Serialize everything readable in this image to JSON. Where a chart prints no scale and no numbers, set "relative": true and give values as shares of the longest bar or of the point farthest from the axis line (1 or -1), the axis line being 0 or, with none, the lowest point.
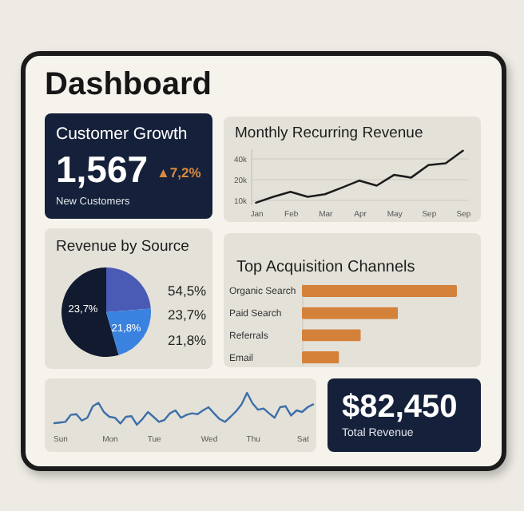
{
  "chart_data": [
    {
      "type": "other",
      "title": "Dashboard"
    },
    {
      "type": "other",
      "title": "Customer Growth",
      "annotations": [
        "1,567",
        "▲7,2%",
        "New Customers"
      ]
    },
    {
      "type": "line",
      "title": "Monthly Recurring Revenue",
      "categories": [
        "Jan",
        null,
        "Feb",
        null,
        "Mar",
        null,
        "Apr",
        null,
        "May",
        null,
        "Sep",
        null,
        "Sep"
      ],
      "values": [
        9000,
        11000,
        13000,
        11000,
        12000,
        15000,
        19000,
        16000,
        23000,
        21000,
        32000,
        34000,
        52000
      ],
      "color": "#1c1c1c",
      "log": "y",
      "ylim": [
        8500,
        56000
      ],
      "yticks": [
        {
          "value": 10000,
          "label": "10k"
        },
        {
          "value": 20000,
          "label": "20k"
        },
        {
          "value": 40000,
          "label": "40k"
        }
      ],
      "grid": "y"
    },
    {
      "type": "pie",
      "title": "Revenue by Source",
      "categories": [
        null,
        null,
        null
      ],
      "values": [
        54.5,
        23.7,
        21.8
      ],
      "colors": [
        "#111a2e",
        "#4a5bb5",
        "#3a82e0"
      ],
      "annotations": [
        "54,5%",
        "23,7%",
        "21,8%",
        "23,7%",
        "21,8%"
      ]
    },
    {
      "type": "bar",
      "orientation": "horizontal",
      "relative": true,
      "title": "Top Acquisition Channels",
      "categories": [
        "Organic Search",
        "Paid Search",
        "Referrals",
        "Email"
      ],
      "values": [
        1,
        0.62,
        0.38,
        0.24
      ],
      "color": "#d4813a"
    },
    {
      "type": "line",
      "relative": true,
      "categories": [
        null,
        "Sun",
        null,
        null,
        null,
        null,
        null,
        null,
        null,
        null,
        "Mon",
        null,
        null,
        null,
        null,
        null,
        null,
        null,
        "Tue",
        null,
        null,
        null,
        null,
        null,
        null,
        null,
        null,
        null,
        "Wed",
        null,
        null,
        null,
        null,
        null,
        null,
        null,
        "Thu",
        null,
        null,
        null,
        null,
        null,
        null,
        null,
        null,
        "Sat",
        null,
        null
      ],
      "values": [
        0.05,
        0.07,
        0.09,
        0.31,
        0.33,
        0.13,
        0.22,
        0.58,
        0.69,
        0.4,
        0.25,
        0.22,
        0.04,
        0.25,
        0.27,
        0,
        0.18,
        0.4,
        0.25,
        0.09,
        0.15,
        0.36,
        0.45,
        0.22,
        0.31,
        0.36,
        0.33,
        0.45,
        0.55,
        0.36,
        0.18,
        0.09,
        0.25,
        0.42,
        0.64,
        1,
        0.67,
        0.47,
        0.51,
        0.36,
        0.22,
        0.55,
        0.58,
        0.29,
        0.45,
        0.4,
        0.55,
        0.64
      ],
      "color": "#3d6fa8"
    },
    {
      "type": "other",
      "title": "$82,450",
      "annotations": [
        "Total Revenue"
      ]
    }
  ]
}
